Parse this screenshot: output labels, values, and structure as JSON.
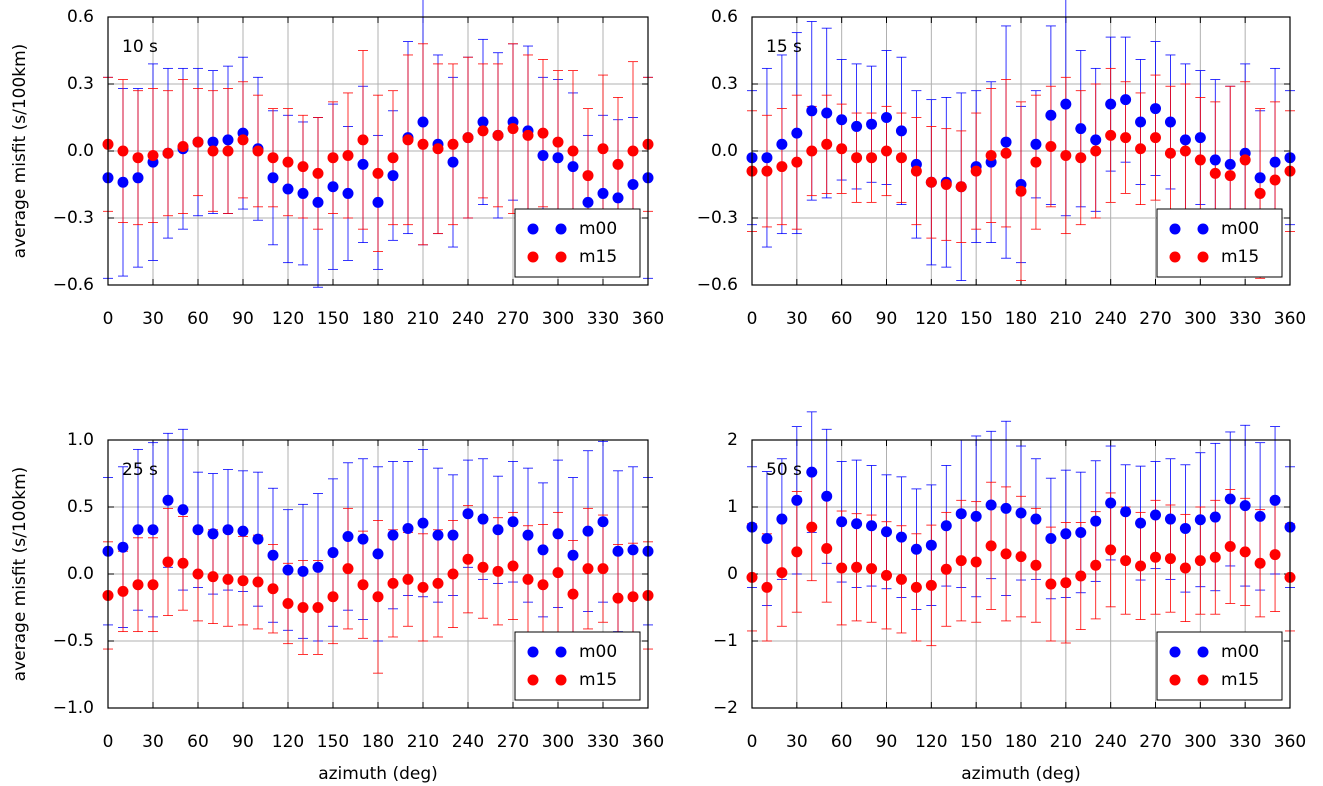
{
  "chart_data": [
    {
      "type": "scatter",
      "title": "10 s",
      "ylabel": "average misfit (s/100km)",
      "x": [
        0,
        10,
        20,
        30,
        40,
        50,
        60,
        70,
        80,
        90,
        100,
        110,
        120,
        130,
        140,
        150,
        160,
        170,
        180,
        190,
        200,
        210,
        220,
        230,
        240,
        250,
        260,
        270,
        280,
        290,
        300,
        310,
        320,
        330,
        340,
        350,
        360
      ],
      "xlim": [
        0,
        360
      ],
      "xticks": [
        0,
        30,
        60,
        90,
        120,
        150,
        180,
        210,
        240,
        270,
        300,
        330,
        360
      ],
      "ylim": [
        -0.6,
        0.6
      ],
      "yticks": [
        {
          "value": -0.6,
          "label": "−0.6"
        },
        {
          "value": -0.3,
          "label": "−0.3"
        },
        {
          "value": 0.0,
          "label": "0.0"
        },
        0.3,
        0.6
      ],
      "grid": true,
      "legend": "lower right",
      "series": [
        {
          "name": "m00",
          "color": "#0000ff",
          "values": [
            -0.12,
            -0.14,
            -0.12,
            -0.05,
            -0.01,
            0.01,
            0.04,
            0.04,
            0.05,
            0.08,
            0.01,
            -0.12,
            -0.17,
            -0.19,
            -0.23,
            -0.16,
            -0.19,
            -0.06,
            -0.23,
            -0.11,
            0.06,
            0.13,
            0.03,
            -0.05,
            0.06,
            0.13,
            0.07,
            0.13,
            0.09,
            -0.02,
            -0.03,
            -0.07,
            -0.23,
            -0.19,
            -0.21,
            -0.15,
            -0.12
          ],
          "errors": [
            0.45,
            0.42,
            0.4,
            0.44,
            0.38,
            0.36,
            0.33,
            0.32,
            0.33,
            0.34,
            0.32,
            0.3,
            0.33,
            0.32,
            0.38,
            0.37,
            0.3,
            0.35,
            0.3,
            0.29,
            0.43,
            0.55,
            0.4,
            0.38,
            0.36,
            0.37,
            0.37,
            0.35,
            0.38,
            0.35,
            0.35,
            0.33,
            0.3,
            0.35,
            0.35,
            0.3,
            0.45
          ]
        },
        {
          "name": "m15",
          "color": "#ff0000",
          "values": [
            0.03,
            0.0,
            -0.03,
            -0.02,
            -0.01,
            0.02,
            0.04,
            0.0,
            0.0,
            0.05,
            0.0,
            -0.03,
            -0.05,
            -0.07,
            -0.1,
            -0.03,
            -0.02,
            0.05,
            -0.1,
            -0.03,
            0.05,
            0.03,
            0.01,
            0.03,
            0.06,
            0.09,
            0.07,
            0.1,
            0.07,
            0.08,
            0.04,
            0.0,
            -0.11,
            0.01,
            -0.06,
            0.0,
            0.03
          ],
          "errors": [
            0.3,
            0.32,
            0.3,
            0.3,
            0.28,
            0.3,
            0.24,
            0.27,
            0.28,
            0.26,
            0.25,
            0.22,
            0.24,
            0.23,
            0.25,
            0.25,
            0.28,
            0.4,
            0.35,
            0.3,
            0.38,
            0.45,
            0.38,
            0.36,
            0.36,
            0.3,
            0.32,
            0.38,
            0.36,
            0.33,
            0.32,
            0.36,
            0.3,
            0.33,
            0.3,
            0.4,
            0.3
          ]
        }
      ]
    },
    {
      "type": "scatter",
      "title": "15 s",
      "x": [
        0,
        10,
        20,
        30,
        40,
        50,
        60,
        70,
        80,
        90,
        100,
        110,
        120,
        130,
        140,
        150,
        160,
        170,
        180,
        190,
        200,
        210,
        220,
        230,
        240,
        250,
        260,
        270,
        280,
        290,
        300,
        310,
        320,
        330,
        340,
        350,
        360
      ],
      "xlim": [
        0,
        360
      ],
      "xticks": [
        0,
        30,
        60,
        90,
        120,
        150,
        180,
        210,
        240,
        270,
        300,
        330,
        360
      ],
      "ylim": [
        -0.6,
        0.6
      ],
      "yticks": [
        {
          "value": -0.6,
          "label": "−0.6"
        },
        {
          "value": -0.3,
          "label": "−0.3"
        },
        {
          "value": 0.0,
          "label": "0.0"
        },
        0.3,
        0.6
      ],
      "grid": true,
      "legend": "lower right",
      "series": [
        {
          "name": "m00",
          "color": "#0000ff",
          "values": [
            -0.03,
            -0.03,
            0.03,
            0.08,
            0.18,
            0.17,
            0.14,
            0.11,
            0.12,
            0.15,
            0.09,
            -0.06,
            -0.14,
            -0.14,
            -0.16,
            -0.07,
            -0.05,
            0.04,
            -0.15,
            0.03,
            0.16,
            0.21,
            0.1,
            0.05,
            0.21,
            0.23,
            0.13,
            0.19,
            0.13,
            0.05,
            0.06,
            -0.04,
            -0.06,
            -0.01,
            -0.12,
            -0.05,
            -0.03
          ],
          "errors": [
            0.3,
            0.4,
            0.4,
            0.45,
            0.4,
            0.38,
            0.27,
            0.28,
            0.26,
            0.3,
            0.33,
            0.33,
            0.37,
            0.38,
            0.42,
            0.34,
            0.36,
            0.52,
            0.35,
            0.24,
            0.4,
            0.5,
            0.35,
            0.32,
            0.3,
            0.28,
            0.28,
            0.3,
            0.3,
            0.34,
            0.3,
            0.36,
            0.35,
            0.4,
            0.3,
            0.42,
            0.3
          ]
        },
        {
          "name": "m15",
          "color": "#ff0000",
          "values": [
            -0.09,
            -0.09,
            -0.07,
            -0.05,
            0.0,
            0.03,
            0.01,
            -0.03,
            -0.03,
            0.0,
            -0.03,
            -0.09,
            -0.14,
            -0.15,
            -0.16,
            -0.09,
            -0.02,
            -0.01,
            -0.18,
            -0.05,
            0.02,
            -0.02,
            -0.03,
            0.0,
            0.07,
            0.06,
            0.01,
            0.06,
            -0.01,
            0.0,
            -0.04,
            -0.1,
            -0.11,
            -0.04,
            -0.19,
            -0.13,
            -0.09
          ],
          "errors": [
            0.27,
            0.25,
            0.26,
            0.3,
            0.2,
            0.22,
            0.2,
            0.2,
            0.2,
            0.2,
            0.2,
            0.24,
            0.25,
            0.25,
            0.25,
            0.26,
            0.3,
            0.33,
            0.4,
            0.3,
            0.27,
            0.35,
            0.3,
            0.3,
            0.3,
            0.25,
            0.25,
            0.28,
            0.3,
            0.3,
            0.28,
            0.32,
            0.4,
            0.35,
            0.38,
            0.35,
            0.27
          ]
        }
      ]
    },
    {
      "type": "scatter",
      "title": "25 s",
      "ylabel": "average misfit (s/100km)",
      "xlabel": "azimuth (deg)",
      "x": [
        0,
        10,
        20,
        30,
        40,
        50,
        60,
        70,
        80,
        90,
        100,
        110,
        120,
        130,
        140,
        150,
        160,
        170,
        180,
        190,
        200,
        210,
        220,
        230,
        240,
        250,
        260,
        270,
        280,
        290,
        300,
        310,
        320,
        330,
        340,
        350,
        360
      ],
      "xlim": [
        0,
        360
      ],
      "xticks": [
        0,
        30,
        60,
        90,
        120,
        150,
        180,
        210,
        240,
        270,
        300,
        330,
        360
      ],
      "ylim": [
        -1.0,
        1.0
      ],
      "yticks": [
        {
          "value": -1.0,
          "label": "−1.0"
        },
        {
          "value": -0.5,
          "label": "−0.5"
        },
        {
          "value": 0.0,
          "label": "0.0"
        },
        0.5,
        {
          "value": 1.0,
          "label": "1.0"
        }
      ],
      "grid": true,
      "legend": "lower right",
      "series": [
        {
          "name": "m00",
          "color": "#0000ff",
          "values": [
            0.17,
            0.2,
            0.33,
            0.33,
            0.55,
            0.48,
            0.33,
            0.3,
            0.33,
            0.32,
            0.26,
            0.14,
            0.03,
            0.02,
            0.05,
            0.16,
            0.28,
            0.26,
            0.15,
            0.29,
            0.34,
            0.38,
            0.29,
            0.29,
            0.45,
            0.41,
            0.33,
            0.39,
            0.29,
            0.18,
            0.3,
            0.14,
            0.32,
            0.39,
            0.17,
            0.18,
            0.17
          ],
          "errors": [
            0.55,
            0.6,
            0.6,
            0.65,
            0.5,
            0.6,
            0.43,
            0.45,
            0.45,
            0.45,
            0.5,
            0.5,
            0.45,
            0.5,
            0.55,
            0.55,
            0.55,
            0.6,
            0.65,
            0.55,
            0.5,
            0.55,
            0.5,
            0.45,
            0.4,
            0.45,
            0.4,
            0.45,
            0.5,
            0.5,
            0.55,
            0.58,
            0.6,
            0.6,
            0.6,
            0.62,
            0.55
          ]
        },
        {
          "name": "m15",
          "color": "#ff0000",
          "values": [
            -0.16,
            -0.13,
            -0.08,
            -0.08,
            0.09,
            0.08,
            0.0,
            -0.02,
            -0.04,
            -0.05,
            -0.06,
            -0.11,
            -0.22,
            -0.25,
            -0.25,
            -0.17,
            0.04,
            -0.08,
            -0.17,
            -0.07,
            -0.04,
            -0.1,
            -0.07,
            0.0,
            0.11,
            0.05,
            0.02,
            0.06,
            -0.04,
            -0.08,
            0.01,
            -0.15,
            0.04,
            0.04,
            -0.18,
            -0.17,
            -0.16
          ],
          "errors": [
            0.4,
            0.3,
            0.35,
            0.35,
            0.4,
            0.35,
            0.35,
            0.35,
            0.35,
            0.33,
            0.35,
            0.33,
            0.3,
            0.35,
            0.35,
            0.35,
            0.45,
            0.4,
            0.57,
            0.4,
            0.35,
            0.4,
            0.4,
            0.4,
            0.4,
            0.38,
            0.4,
            0.4,
            0.4,
            0.45,
            0.45,
            0.4,
            0.45,
            0.4,
            0.4,
            0.4,
            0.4
          ]
        }
      ]
    },
    {
      "type": "scatter",
      "title": "50 s",
      "xlabel": "azimuth (deg)",
      "x": [
        0,
        10,
        20,
        30,
        40,
        50,
        60,
        70,
        80,
        90,
        100,
        110,
        120,
        130,
        140,
        150,
        160,
        170,
        180,
        190,
        200,
        210,
        220,
        230,
        240,
        250,
        260,
        270,
        280,
        290,
        300,
        310,
        320,
        330,
        340,
        350,
        360
      ],
      "xlim": [
        0,
        360
      ],
      "xticks": [
        0,
        30,
        60,
        90,
        120,
        150,
        180,
        210,
        240,
        270,
        300,
        330,
        360
      ],
      "ylim": [
        -2,
        2
      ],
      "yticks": [
        {
          "value": -2,
          "label": "−2"
        },
        {
          "value": -1,
          "label": "−1"
        },
        0,
        1,
        2
      ],
      "grid": true,
      "legend": "lower right",
      "series": [
        {
          "name": "m00",
          "color": "#0000ff",
          "values": [
            0.7,
            0.53,
            0.82,
            1.1,
            1.52,
            1.16,
            0.78,
            0.75,
            0.72,
            0.63,
            0.55,
            0.37,
            0.43,
            0.72,
            0.9,
            0.86,
            1.03,
            0.98,
            0.91,
            0.82,
            0.53,
            0.6,
            0.62,
            0.79,
            1.06,
            0.93,
            0.76,
            0.88,
            0.82,
            0.68,
            0.81,
            0.85,
            1.12,
            1.02,
            0.86,
            1.1,
            0.7
          ],
          "errors": [
            0.9,
            1.0,
            0.9,
            1.1,
            0.9,
            1.0,
            0.9,
            0.95,
            0.9,
            0.85,
            0.9,
            0.9,
            0.9,
            0.9,
            1.1,
            1.2,
            1.1,
            1.3,
            1.0,
            0.9,
            0.9,
            0.95,
            0.9,
            0.9,
            0.85,
            0.7,
            0.85,
            0.8,
            0.9,
            0.95,
            1.0,
            1.1,
            1.0,
            1.2,
            1.1,
            1.1,
            0.9
          ]
        },
        {
          "name": "m15",
          "color": "#ff0000",
          "values": [
            -0.05,
            -0.2,
            0.02,
            0.33,
            0.7,
            0.38,
            0.09,
            0.1,
            0.08,
            -0.02,
            -0.08,
            -0.2,
            -0.17,
            0.07,
            0.2,
            0.18,
            0.42,
            0.3,
            0.26,
            0.13,
            -0.15,
            -0.13,
            -0.03,
            0.13,
            0.36,
            0.2,
            0.12,
            0.25,
            0.23,
            0.09,
            0.2,
            0.25,
            0.41,
            0.33,
            0.16,
            0.29,
            -0.05
          ],
          "errors": [
            0.8,
            0.8,
            0.8,
            0.9,
            0.8,
            0.8,
            0.85,
            0.8,
            0.8,
            0.8,
            0.8,
            0.8,
            0.9,
            0.85,
            0.9,
            0.9,
            0.95,
            1.0,
            0.9,
            0.85,
            0.85,
            0.9,
            0.8,
            0.8,
            0.85,
            0.8,
            0.8,
            0.85,
            0.8,
            0.8,
            0.8,
            0.85,
            0.85,
            0.8,
            0.8,
            0.85,
            0.8
          ]
        }
      ]
    }
  ]
}
